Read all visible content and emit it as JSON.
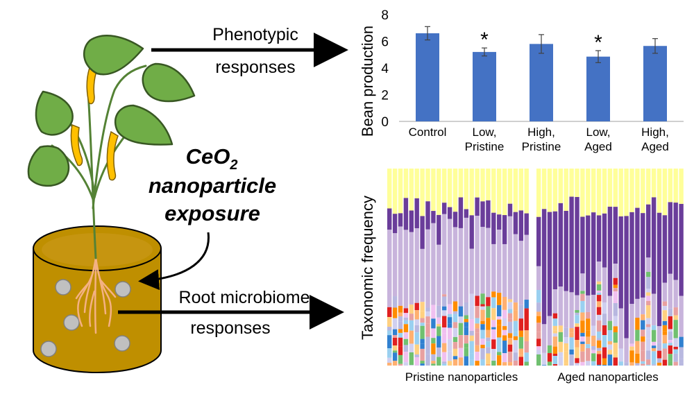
{
  "center_label": {
    "line1": "CeO",
    "subscript": "2",
    "line2": "nanoparticle",
    "line3": "exposure"
  },
  "arrow_labels": {
    "phenotypic_line1": "Phenotypic",
    "phenotypic_line2": "responses",
    "root_line1": "Root microbiome",
    "root_line2": "responses"
  },
  "stacked_panel": {
    "ylabel": "Taxonomic frequency",
    "group1_label": "Pristine nanoparticles",
    "group2_label": "Aged nanoparticles",
    "colors": [
      "#b8b8e0",
      "#d0d0f0",
      "#e8a0a0",
      "#9ad0f0",
      "#f0c0f0",
      "#ffd080",
      "#70c070",
      "#3080d0",
      "#e02020",
      "#ffb070",
      "#ff8c00",
      "#c8b4dc",
      "#6a3d9a",
      "#ffff99"
    ]
  },
  "chart_data": {
    "type": "bar",
    "categories": [
      "Control",
      "Low,\nPristine",
      "High,\nPristine",
      "Low,\nAged",
      "High,\nAged"
    ],
    "category_lines": [
      [
        "Control"
      ],
      [
        "Low,",
        "Pristine"
      ],
      [
        "High,",
        "Pristine"
      ],
      [
        "Low,",
        "Aged"
      ],
      [
        "High,",
        "Aged"
      ]
    ],
    "values": [
      6.6,
      5.2,
      5.8,
      4.85,
      5.65
    ],
    "errors": [
      0.5,
      0.3,
      0.7,
      0.45,
      0.55
    ],
    "significant": [
      false,
      true,
      false,
      true,
      false
    ],
    "significance_marker": "*",
    "ylabel": "Bean production",
    "xlabel": "",
    "ylim": [
      0,
      8
    ],
    "yticks": [
      0,
      2,
      4,
      6,
      8
    ],
    "bar_color": "#4472c4",
    "grid": false
  }
}
